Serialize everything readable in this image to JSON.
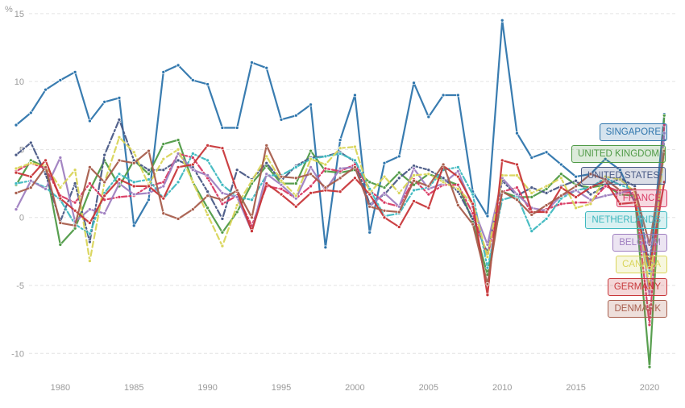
{
  "chart_data": {
    "type": "line",
    "unit_label": "%",
    "xlim": [
      1977,
      2021
    ],
    "ylim": [
      -12,
      16
    ],
    "x_ticks": [
      1980,
      1985,
      1990,
      1995,
      2000,
      2005,
      2010,
      2015,
      2020
    ],
    "y_ticks": [
      -10,
      -5,
      0,
      5,
      10,
      15
    ],
    "grid": "horizontal-dashed",
    "x": [
      1977,
      1978,
      1979,
      1980,
      1981,
      1982,
      1983,
      1984,
      1985,
      1986,
      1987,
      1988,
      1989,
      1990,
      1991,
      1992,
      1993,
      1994,
      1995,
      1996,
      1997,
      1998,
      1999,
      2000,
      2001,
      2002,
      2003,
      2004,
      2005,
      2006,
      2007,
      2008,
      2009,
      2010,
      2011,
      2012,
      2013,
      2014,
      2015,
      2016,
      2017,
      2018,
      2019,
      2020,
      2021
    ],
    "series": [
      {
        "name": "SINGAPORE",
        "color": "#2e75ac",
        "style": "solid",
        "values": [
          6.8,
          7.7,
          9.4,
          10.1,
          10.7,
          7.1,
          8.5,
          8.8,
          -0.6,
          1.3,
          10.7,
          11.2,
          10.1,
          9.8,
          6.6,
          6.6,
          11.4,
          11.0,
          7.2,
          7.5,
          8.3,
          -2.2,
          5.7,
          9.0,
          -1.1,
          4.0,
          4.5,
          9.9,
          7.4,
          9.0,
          9.0,
          1.9,
          0.1,
          14.5,
          6.2,
          4.4,
          4.8,
          3.9,
          3.0,
          3.2,
          4.3,
          3.5,
          1.1,
          -4.1,
          7.6
        ]
      },
      {
        "name": "UNITED KINGDOM",
        "color": "#4f9a46",
        "style": "solid",
        "values": [
          2.4,
          4.2,
          3.7,
          -2.0,
          -0.8,
          2.0,
          4.2,
          2.3,
          4.2,
          3.2,
          5.4,
          5.7,
          2.6,
          0.7,
          -1.1,
          0.4,
          2.5,
          3.8,
          2.5,
          2.5,
          4.9,
          3.4,
          3.3,
          3.5,
          2.6,
          2.2,
          3.3,
          2.4,
          3.2,
          2.8,
          2.4,
          -0.3,
          -4.2,
          1.9,
          1.5,
          1.5,
          2.1,
          3.2,
          2.4,
          2.2,
          2.4,
          1.7,
          1.6,
          -11.0,
          7.5
        ]
      },
      {
        "name": "UNITED STATES",
        "color": "#4a5a86",
        "style": "dashdot",
        "values": [
          4.6,
          5.5,
          3.2,
          -0.3,
          2.5,
          -1.8,
          4.6,
          7.2,
          4.2,
          3.5,
          3.5,
          4.2,
          3.7,
          1.9,
          -0.1,
          3.5,
          2.8,
          4.0,
          2.7,
          3.8,
          4.4,
          4.5,
          4.8,
          4.1,
          1.0,
          1.7,
          2.9,
          3.8,
          3.5,
          2.9,
          1.9,
          -0.1,
          -2.6,
          2.7,
          1.6,
          2.2,
          1.8,
          2.3,
          2.7,
          1.7,
          2.3,
          2.9,
          2.3,
          -3.4,
          5.7
        ]
      },
      {
        "name": "FRANCE",
        "color": "#d93a63",
        "style": "dashdot",
        "values": [
          3.4,
          4.0,
          3.6,
          1.6,
          1.1,
          2.5,
          1.3,
          1.5,
          1.6,
          2.3,
          2.6,
          4.7,
          4.4,
          2.9,
          1.0,
          1.6,
          -0.6,
          2.3,
          2.1,
          1.4,
          2.3,
          3.6,
          3.4,
          3.9,
          2.0,
          1.1,
          0.8,
          2.8,
          1.7,
          2.4,
          2.4,
          0.3,
          -2.9,
          1.9,
          2.2,
          0.3,
          0.6,
          1.0,
          1.1,
          1.1,
          2.3,
          1.9,
          1.8,
          -7.9,
          6.8
        ]
      },
      {
        "name": "NETHERLANDS",
        "color": "#3fb9c0",
        "style": "dashdot",
        "values": [
          2.5,
          2.7,
          2.2,
          1.3,
          -0.5,
          -1.2,
          1.8,
          3.2,
          2.6,
          2.8,
          1.4,
          2.6,
          4.7,
          4.2,
          2.4,
          1.5,
          1.3,
          3.1,
          3.1,
          3.7,
          4.3,
          4.5,
          4.7,
          4.2,
          2.1,
          0.1,
          0.3,
          2.0,
          2.2,
          3.5,
          3.7,
          1.7,
          -3.7,
          1.3,
          1.6,
          -1.0,
          -0.1,
          1.4,
          2.0,
          2.2,
          2.9,
          2.4,
          2.0,
          -3.9,
          4.9
        ]
      },
      {
        "name": "BELGIUM",
        "color": "#9f7fc0",
        "style": "solid",
        "values": [
          0.6,
          2.7,
          2.1,
          4.4,
          -0.3,
          0.6,
          0.3,
          2.5,
          1.7,
          1.8,
          2.3,
          4.7,
          3.5,
          3.1,
          1.8,
          1.5,
          -1.0,
          3.2,
          2.4,
          1.4,
          3.7,
          2.0,
          3.6,
          3.7,
          0.8,
          1.8,
          0.8,
          3.6,
          2.1,
          2.5,
          3.4,
          0.8,
          -2.0,
          2.9,
          1.7,
          0.7,
          0.5,
          1.6,
          2.0,
          1.3,
          1.6,
          1.8,
          2.1,
          -5.7,
          6.2
        ]
      },
      {
        "name": "CANADA",
        "color": "#d9d55a",
        "style": "dashed",
        "values": [
          3.6,
          4.0,
          3.8,
          2.2,
          3.5,
          -3.2,
          2.6,
          5.9,
          4.8,
          2.4,
          4.3,
          5.0,
          2.6,
          0.2,
          -2.1,
          0.9,
          2.7,
          4.5,
          2.7,
          1.6,
          4.3,
          3.9,
          5.1,
          5.2,
          1.8,
          3.0,
          1.8,
          3.1,
          3.2,
          2.6,
          2.1,
          1.0,
          -2.9,
          3.1,
          3.1,
          1.8,
          2.3,
          2.9,
          0.7,
          1.0,
          3.0,
          2.8,
          1.9,
          -5.2,
          5.0
        ]
      },
      {
        "name": "GERMANY",
        "color": "#c8373a",
        "style": "solid",
        "values": [
          3.3,
          3.0,
          4.2,
          1.4,
          0.5,
          -0.4,
          1.6,
          2.8,
          2.3,
          2.3,
          1.4,
          3.7,
          3.9,
          5.3,
          5.1,
          1.9,
          -1.0,
          2.5,
          1.7,
          0.8,
          1.8,
          2.0,
          1.9,
          2.9,
          1.7,
          0.0,
          -0.7,
          1.2,
          0.7,
          3.8,
          3.0,
          1.0,
          -5.7,
          4.2,
          3.9,
          0.4,
          0.4,
          2.2,
          1.5,
          2.2,
          2.7,
          1.0,
          1.1,
          -3.7,
          2.6
        ]
      },
      {
        "name": "DENMARK",
        "color": "#a85e4d",
        "style": "solid",
        "values": [
          1.8,
          2.2,
          3.7,
          -0.4,
          -0.6,
          3.7,
          2.6,
          4.2,
          4.0,
          4.9,
          0.3,
          -0.1,
          0.6,
          1.6,
          1.3,
          2.0,
          0.0,
          5.3,
          3.0,
          2.9,
          3.2,
          2.2,
          2.9,
          3.7,
          0.8,
          0.5,
          0.4,
          2.7,
          2.3,
          3.9,
          0.9,
          -0.5,
          -4.9,
          1.9,
          1.3,
          0.2,
          0.9,
          1.6,
          2.3,
          3.2,
          2.8,
          2.0,
          2.1,
          -2.0,
          4.9
        ]
      }
    ]
  }
}
